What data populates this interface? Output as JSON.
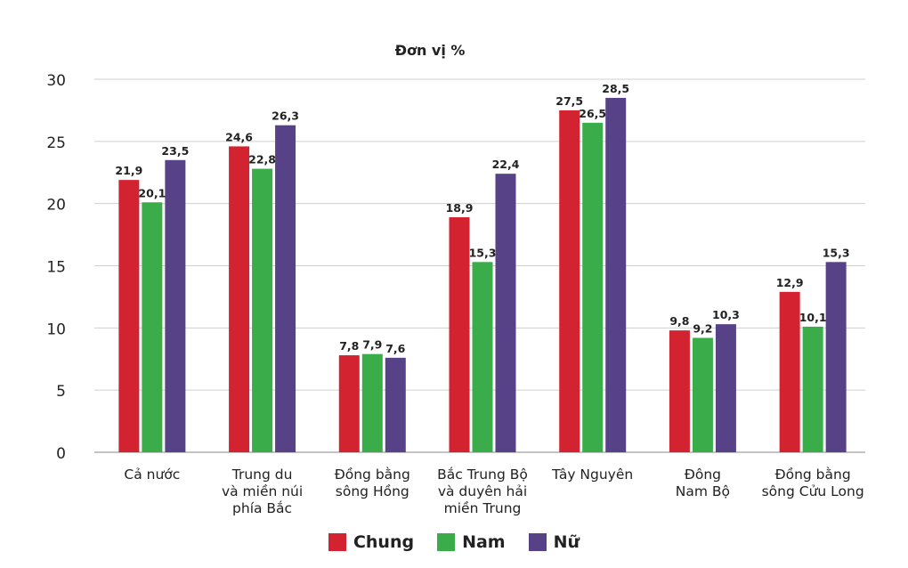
{
  "chart_data": {
    "type": "bar",
    "title": "Đơn vị %",
    "categories": [
      [
        "Cả nước"
      ],
      [
        "Trung du",
        "và miền núi",
        "phía Bắc"
      ],
      [
        "Đồng bằng",
        "sông Hồng"
      ],
      [
        "Bắc Trung Bộ",
        "và duyên hải",
        "miền Trung"
      ],
      [
        "Tây Nguyên"
      ],
      [
        "Đông",
        "Nam Bộ"
      ],
      [
        "Đồng bằng",
        "sông Cửu Long"
      ]
    ],
    "series": [
      {
        "name": "Chung",
        "color": "#d42330",
        "values": [
          21.9,
          24.6,
          7.8,
          18.9,
          27.5,
          9.8,
          12.9
        ],
        "labels": [
          "21,9",
          "24,6",
          "7,8",
          "18,9",
          "27,5",
          "9,8",
          "12,9"
        ]
      },
      {
        "name": "Nam",
        "color": "#3aad4a",
        "values": [
          20.1,
          22.8,
          7.9,
          15.3,
          26.5,
          9.2,
          10.1
        ],
        "labels": [
          "20,1",
          "22,8",
          "7,9",
          "15,3",
          "26,5",
          "9,2",
          "10,1"
        ]
      },
      {
        "name": "Nữ",
        "color": "#574287",
        "values": [
          23.5,
          26.3,
          7.6,
          22.4,
          28.5,
          10.3,
          15.3
        ],
        "labels": [
          "23,5",
          "26,3",
          "7,6",
          "22,4",
          "28,5",
          "10,3",
          "15,3"
        ]
      }
    ],
    "ylim": [
      0,
      30
    ],
    "yticks": [
      0,
      5,
      10,
      15,
      20,
      25,
      30
    ],
    "grid": true,
    "legend_position": "bottom"
  }
}
